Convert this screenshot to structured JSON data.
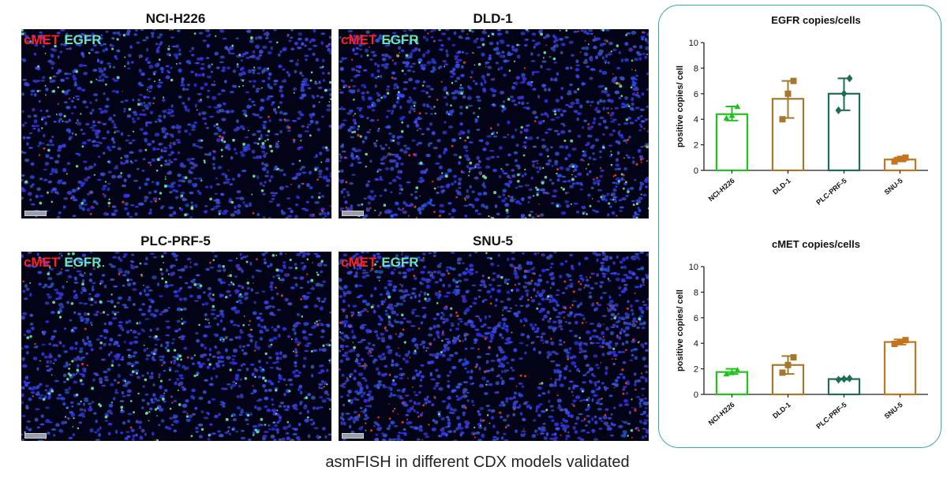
{
  "panels": [
    {
      "title": "NCI-H226",
      "overlay_1": "cMET",
      "overlay_2": "EGFR",
      "green": 150,
      "red": 40,
      "dense": false
    },
    {
      "title": "DLD-1",
      "overlay_1": "cMET",
      "overlay_2": "EGFR",
      "green": 170,
      "red": 120,
      "dense": false
    },
    {
      "title": "PLC-PRF-5",
      "overlay_1": "cMET",
      "overlay_2": "EGFR",
      "green": 200,
      "red": 50,
      "dense": false
    },
    {
      "title": "SNU-5",
      "overlay_1": "cMET",
      "overlay_2": "EGFR",
      "green": 60,
      "red": 170,
      "dense": true
    }
  ],
  "colors": {
    "micro_bg": "#030318",
    "nuclei": "#2b3fd6",
    "egfr_signal": "#6ff5b0",
    "cmet_signal": "#ff3b2a",
    "box_border": "#3aaaa6"
  },
  "chart_data": [
    {
      "type": "bar",
      "title": "EGFR copies/cells",
      "ylabel": "positive copies/ cell",
      "ylim": [
        0,
        10
      ],
      "yticks": [
        0,
        2,
        4,
        6,
        8,
        10
      ],
      "categories": [
        "NCI-H226",
        "DLD-1",
        "PLC-PRF-5",
        "SNU-5"
      ],
      "values": [
        4.4,
        5.6,
        6.0,
        0.85
      ],
      "errors": [
        [
          3.9,
          5.0
        ],
        [
          4.1,
          7.0
        ],
        [
          4.7,
          7.2
        ],
        [
          0.7,
          1.0
        ]
      ],
      "points": [
        [
          4.1,
          4.3,
          5.0
        ],
        [
          4.0,
          6.0,
          7.0
        ],
        [
          4.7,
          6.0,
          7.2
        ],
        [
          0.7,
          0.9,
          1.0
        ]
      ],
      "colors": [
        "#22c21e",
        "#a7782c",
        "#1c6e4f",
        "#c4741c"
      ],
      "markers": [
        "triangle",
        "square",
        "diamond",
        "square"
      ]
    },
    {
      "type": "bar",
      "title": "cMET copies/cells",
      "ylabel": "positive copies/ cell",
      "ylim": [
        0,
        10
      ],
      "yticks": [
        0,
        2,
        4,
        6,
        8,
        10
      ],
      "categories": [
        "NCI-H226",
        "DLD-1",
        "PLC-PRF-5",
        "SNU-5"
      ],
      "values": [
        1.75,
        2.3,
        1.2,
        4.1
      ],
      "errors": [
        [
          1.6,
          2.0
        ],
        [
          1.6,
          3.0
        ],
        [
          1.15,
          1.25
        ],
        [
          3.9,
          4.3
        ]
      ],
      "points": [
        [
          1.6,
          1.7,
          1.9
        ],
        [
          1.7,
          2.3,
          2.9
        ],
        [
          1.15,
          1.2,
          1.25
        ],
        [
          3.95,
          4.1,
          4.25
        ]
      ],
      "colors": [
        "#22c21e",
        "#a7782c",
        "#1c6e4f",
        "#c4741c"
      ],
      "markers": [
        "triangle",
        "square",
        "diamond",
        "square"
      ]
    }
  ],
  "caption": "asmFISH in different CDX models validated"
}
